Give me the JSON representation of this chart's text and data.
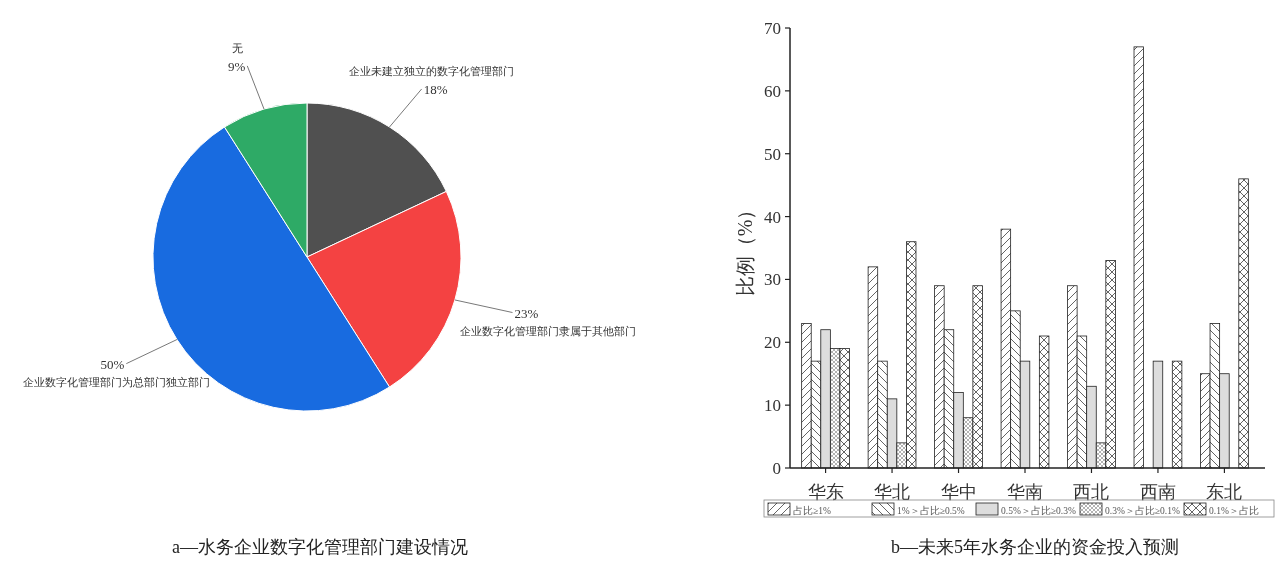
{
  "chart_data": [
    {
      "type": "pie",
      "title": "a—水务企业数字化管理部门建设情况",
      "categories": [
        "企业未建立独立的数字化管理部门",
        "企业数字化管理部门隶属于其他部门",
        "企业数字化管理部门为总部门独立部门",
        "无"
      ],
      "values": [
        18,
        23,
        50,
        9
      ],
      "colors": [
        "#505050",
        "#f44242",
        "#186be0",
        "#2eaa66"
      ],
      "value_labels": [
        "18%",
        "23%",
        "50%",
        "9%"
      ],
      "legend": false
    },
    {
      "type": "bar",
      "title": "b—未来5年水务企业的资金投入预测",
      "ylabel": "比例（%）",
      "categories": [
        "华东",
        "华北",
        "华中",
        "华南",
        "西北",
        "西南",
        "东北"
      ],
      "series": [
        {
          "name": "占比≥1%",
          "color": "#222222",
          "values": [
            23,
            32,
            29,
            38,
            29,
            67,
            15
          ]
        },
        {
          "name": "1%＞占比≥0.5%",
          "color": "#222222",
          "values": [
            17,
            17,
            22,
            25,
            21,
            0,
            23
          ]
        },
        {
          "name": "0.5%＞占比≥0.3%",
          "color": "#dddddd",
          "values": [
            22,
            11,
            12,
            17,
            13,
            17,
            15
          ]
        },
        {
          "name": "0.3%＞占比≥0.1%",
          "color": "#222222",
          "values": [
            19,
            4,
            8,
            0,
            4,
            0,
            0
          ]
        },
        {
          "name": "0.1%＞占比",
          "color": "#222222",
          "values": [
            19,
            36,
            29,
            21,
            33,
            17,
            46
          ]
        }
      ],
      "ylim": [
        0,
        70
      ],
      "yticks": [
        0,
        10,
        20,
        30,
        40,
        50,
        60,
        70
      ],
      "grid": false,
      "legend": "bottom"
    }
  ]
}
